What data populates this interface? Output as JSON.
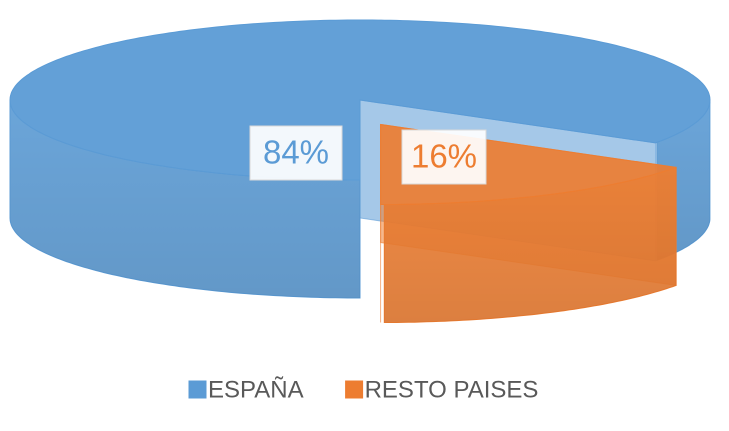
{
  "chart_data": {
    "type": "pie",
    "categories": [
      "ESPAÑA",
      "RESTO PAISES"
    ],
    "values": [
      84,
      16
    ],
    "value_labels": [
      "84%",
      "16%"
    ],
    "colors": [
      "#5b9bd5",
      "#ed7d31"
    ],
    "legend": "bottom"
  }
}
